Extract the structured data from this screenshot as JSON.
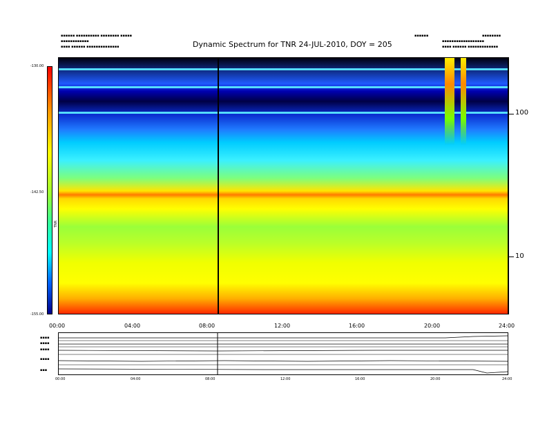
{
  "chart_data": {
    "type": "heatmap",
    "title": "Dynamic Spectrum for TNR 24-JUL-2010, DOY = 205",
    "x_tick_labels": [
      "00:00",
      "04:00",
      "08:00",
      "12:00",
      "16:00",
      "20:00",
      "24:00"
    ],
    "xlim_hours": [
      0,
      24
    ],
    "y_tick_labels": [
      "100",
      "10"
    ],
    "y_scale": "log",
    "colorbar": {
      "label": "TNR",
      "tick_labels": [
        "-130.00",
        "-142.50",
        "-155.00"
      ],
      "range": [
        -155,
        -130
      ],
      "colors": [
        "#00008b",
        "#0066ff",
        "#00ffff",
        "#33ff99",
        "#ffff00",
        "#ff9900",
        "#ff0000"
      ]
    },
    "marker_time": "08:30",
    "marker_hours": 8.5,
    "lower_panel": {
      "tick_labels": [
        "00:00",
        "04:00",
        "08:00",
        "12:00",
        "16:00",
        "20:00",
        "24:00"
      ],
      "trace_count": 6
    }
  }
}
